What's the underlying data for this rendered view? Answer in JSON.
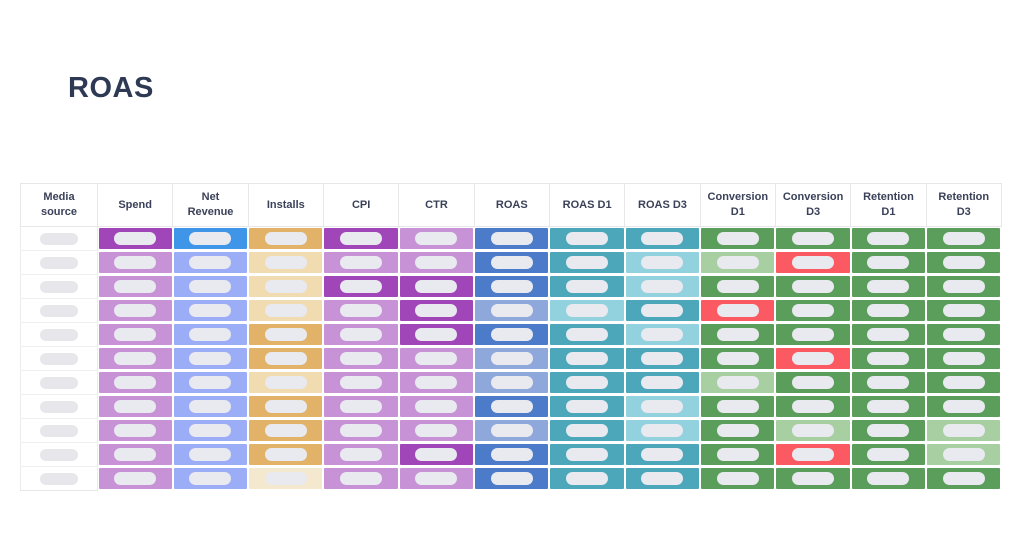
{
  "page_title": "ROAS",
  "palette": {
    "W": "#ffffff",
    "P3": "#a146b8",
    "P2": "#c792d6",
    "B3": "#3f96e9",
    "B2": "#9badf7",
    "T3": "#e2b269",
    "T2": "#f0dcb0",
    "T1": "#f4e8cf",
    "RB3": "#4c7bca",
    "RB2": "#8ea8dc",
    "TL3": "#4da7bb",
    "TL2": "#92d1de",
    "G3": "#5b9e5c",
    "G2": "#a7cfa2",
    "R": "#fb5a63"
  },
  "pill_color": "#e9e9f0",
  "media_pill_color": "#e6e6eb",
  "table": {
    "columns": [
      "Media source",
      "Spend",
      "Net Revenue",
      "Installs",
      "CPI",
      "CTR",
      "ROAS",
      "ROAS D1",
      "ROAS D3",
      "Conversion D1",
      "Conversion D3",
      "Retention D1",
      "Retention D3"
    ],
    "rows": [
      [
        "W",
        "P3",
        "B3",
        "T3",
        "P3",
        "P2",
        "RB3",
        "TL3",
        "TL3",
        "G3",
        "G3",
        "G3",
        "G3"
      ],
      [
        "W",
        "P2",
        "B2",
        "T2",
        "P2",
        "P2",
        "RB3",
        "TL3",
        "TL2",
        "G2",
        "R",
        "G3",
        "G3"
      ],
      [
        "W",
        "P2",
        "B2",
        "T2",
        "P3",
        "P3",
        "RB3",
        "TL3",
        "TL2",
        "G3",
        "G3",
        "G3",
        "G3"
      ],
      [
        "W",
        "P2",
        "B2",
        "T2",
        "P2",
        "P3",
        "RB2",
        "TL2",
        "TL3",
        "R",
        "G3",
        "G3",
        "G3"
      ],
      [
        "W",
        "P2",
        "B2",
        "T3",
        "P2",
        "P3",
        "RB3",
        "TL3",
        "TL2",
        "G3",
        "G3",
        "G3",
        "G3"
      ],
      [
        "W",
        "P2",
        "B2",
        "T3",
        "P2",
        "P2",
        "RB2",
        "TL3",
        "TL3",
        "G3",
        "R",
        "G3",
        "G3"
      ],
      [
        "W",
        "P2",
        "B2",
        "T2",
        "P2",
        "P2",
        "RB2",
        "TL3",
        "TL3",
        "G2",
        "G3",
        "G3",
        "G3"
      ],
      [
        "W",
        "P2",
        "B2",
        "T3",
        "P2",
        "P2",
        "RB3",
        "TL3",
        "TL2",
        "G3",
        "G3",
        "G3",
        "G3"
      ],
      [
        "W",
        "P2",
        "B2",
        "T3",
        "P2",
        "P2",
        "RB2",
        "TL3",
        "TL2",
        "G3",
        "G2",
        "G3",
        "G2"
      ],
      [
        "W",
        "P2",
        "B2",
        "T3",
        "P2",
        "P3",
        "RB3",
        "TL3",
        "TL3",
        "G3",
        "R",
        "G3",
        "G2"
      ],
      [
        "W",
        "P2",
        "B2",
        "T1",
        "P2",
        "P2",
        "RB3",
        "TL3",
        "TL3",
        "G3",
        "G3",
        "G3",
        "G3"
      ]
    ]
  }
}
